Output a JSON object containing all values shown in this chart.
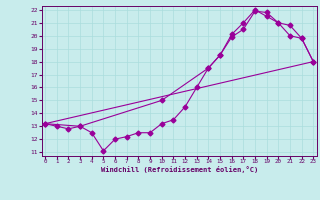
{
  "xlabel": "Windchill (Refroidissement éolien,°C)",
  "bg_color": "#c8ecec",
  "line_color": "#990099",
  "grid_color": "#aadddd",
  "spine_color": "#660066",
  "tick_color": "#660066",
  "xmin": 0,
  "xmax": 23,
  "ymin": 11,
  "ymax": 22,
  "line1_x": [
    0,
    1,
    2,
    3,
    4,
    5,
    6,
    7,
    8,
    9,
    10,
    11,
    12,
    13,
    14,
    15,
    16,
    17,
    18,
    19,
    20,
    21,
    22,
    23
  ],
  "line1_y": [
    13.2,
    13.0,
    12.8,
    13.0,
    12.5,
    11.1,
    12.0,
    12.2,
    12.5,
    12.5,
    13.2,
    13.5,
    14.5,
    16.0,
    17.5,
    18.5,
    19.9,
    20.5,
    21.9,
    21.8,
    21.0,
    20.0,
    19.8,
    18.0
  ],
  "line2_x": [
    0,
    3,
    10,
    14,
    15,
    16,
    17,
    18,
    19,
    20,
    21,
    22,
    23
  ],
  "line2_y": [
    13.2,
    13.0,
    15.0,
    17.5,
    18.5,
    20.1,
    21.0,
    22.0,
    21.5,
    21.0,
    20.8,
    19.8,
    18.0
  ],
  "line3_x": [
    0,
    23
  ],
  "line3_y": [
    13.2,
    18.0
  ]
}
